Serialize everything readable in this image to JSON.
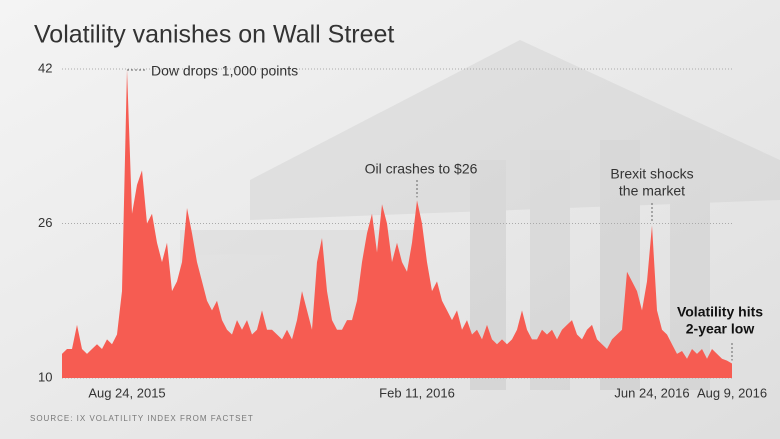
{
  "chart_data": {
    "type": "area",
    "title": "Volatility vanishes on Wall Street",
    "source": "SOURCE: IX VOLATILITY INDEX FROM FACTSET",
    "color": "#f65c52",
    "grid": true,
    "ylim": [
      10,
      42
    ],
    "yticks": [
      10,
      26,
      42
    ],
    "categories": [
      null,
      null,
      null,
      null,
      null,
      null,
      null,
      null,
      null,
      null,
      null,
      null,
      null,
      "Aug 24, 2015",
      null,
      null,
      null,
      null,
      null,
      null,
      null,
      null,
      null,
      null,
      null,
      null,
      null,
      null,
      null,
      null,
      null,
      null,
      null,
      null,
      null,
      null,
      null,
      null,
      null,
      null,
      null,
      null,
      null,
      null,
      null,
      null,
      null,
      null,
      null,
      null,
      null,
      null,
      null,
      null,
      null,
      null,
      null,
      null,
      null,
      null,
      null,
      null,
      null,
      null,
      null,
      null,
      null,
      null,
      null,
      null,
      null,
      "Feb 11, 2016",
      null,
      null,
      null,
      null,
      null,
      null,
      null,
      null,
      null,
      null,
      null,
      null,
      null,
      null,
      null,
      null,
      null,
      null,
      null,
      null,
      null,
      null,
      null,
      null,
      null,
      null,
      null,
      null,
      null,
      null,
      null,
      null,
      null,
      null,
      null,
      null,
      null,
      null,
      null,
      null,
      null,
      null,
      null,
      null,
      null,
      null,
      "Jun 24, 2016",
      null,
      null,
      null,
      null,
      null,
      null,
      null,
      null,
      null,
      null,
      null,
      null,
      null,
      null,
      null,
      "Aug 9, 2016"
    ],
    "values": [
      12.5,
      13,
      13,
      15.5,
      13,
      12.5,
      13,
      13.5,
      13,
      14,
      13.5,
      14.5,
      19,
      42,
      27,
      30,
      31.5,
      26,
      27,
      24,
      22,
      24,
      19,
      20,
      22,
      27.6,
      25,
      22,
      20,
      18,
      17,
      18,
      16,
      15,
      14.5,
      16,
      15,
      16,
      14.5,
      15,
      17,
      15,
      15,
      14.5,
      14,
      15,
      14,
      16,
      19,
      17,
      15,
      22,
      24.5,
      19,
      16,
      15,
      15,
      16,
      16,
      18,
      22,
      25,
      27,
      23,
      28,
      26,
      22,
      24,
      22,
      21,
      24,
      28.4,
      26,
      22,
      19,
      20,
      18,
      17,
      16,
      17,
      15,
      16,
      14.5,
      15,
      14,
      15.5,
      14,
      13.5,
      14,
      13.5,
      14,
      15,
      17,
      15,
      14,
      14,
      15,
      14.5,
      15,
      14,
      15,
      15.5,
      16,
      14.5,
      14,
      15,
      15.5,
      14,
      13.5,
      13,
      14,
      14.5,
      15,
      21,
      20,
      19,
      17,
      20,
      25.8,
      17,
      15,
      14.5,
      13.5,
      12.5,
      12.8,
      12,
      13,
      12.5,
      13,
      12,
      13,
      12.5,
      12,
      11.8,
      11.5
    ],
    "annotations": [
      {
        "text": [
          "Dow drops 1,000 points"
        ]
      },
      {
        "text": [
          "Oil crashes to $26"
        ]
      },
      {
        "text": [
          "Brexit shocks",
          "the market"
        ]
      },
      {
        "text": [
          "Volatility hits",
          "2-year low"
        ]
      }
    ]
  }
}
